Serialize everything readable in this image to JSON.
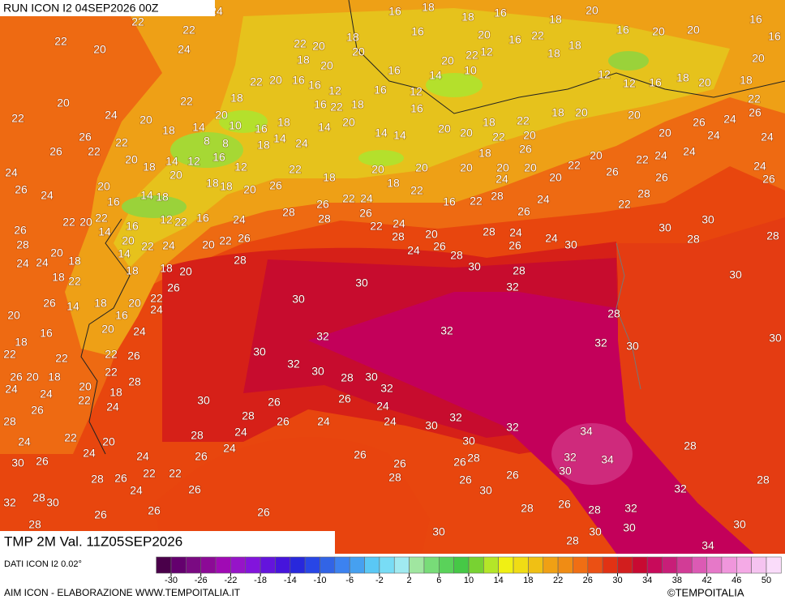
{
  "header": {
    "title": "RUN ICON I2 04SEP2026 00Z"
  },
  "footer": {
    "validity": "TMP 2M Val. 11Z05SEP2026",
    "source": "DATI ICON I2 0.02°",
    "credit": "AIM ICON - ELABORAZIONE WWW.TEMPOITALIA.IT",
    "brand": "©TEMPOITALIA"
  },
  "colorbar": {
    "ticks": [
      -30,
      -26,
      -22,
      -18,
      -14,
      -10,
      -6,
      -2,
      2,
      6,
      10,
      14,
      18,
      22,
      26,
      30,
      34,
      38,
      42,
      46,
      50
    ],
    "colors": [
      "#4a004a",
      "#64006e",
      "#7a0a82",
      "#8c0a96",
      "#a00ab4",
      "#9614c8",
      "#8214dc",
      "#6414dc",
      "#4614dc",
      "#2828dc",
      "#2846e6",
      "#3264e6",
      "#3c82f0",
      "#46a0f0",
      "#5ac8f5",
      "#78dcf5",
      "#a0eaf0",
      "#a0e6a0",
      "#78dc78",
      "#5ad25a",
      "#46c846",
      "#78d232",
      "#b4e628",
      "#f0f014",
      "#f0dc14",
      "#f0c014",
      "#f0a014",
      "#f08c14",
      "#f06e14",
      "#eb5014",
      "#e13214",
      "#d21e1e",
      "#c80a32",
      "#c80a5a",
      "#c81e78",
      "#d23c96",
      "#dc5ab4",
      "#e678c8",
      "#f096dc",
      "#f5aae6",
      "#f5c3f0",
      "#fadcfa"
    ]
  },
  "map": {
    "labels": [
      22,
      22,
      22,
      20,
      24,
      24,
      18,
      22,
      20,
      18,
      20,
      20,
      16,
      16,
      18,
      18,
      16,
      20,
      16,
      22,
      18,
      20,
      16,
      20,
      20,
      16,
      16,
      20,
      18,
      20,
      18,
      16,
      12,
      12,
      18,
      18,
      12,
      22,
      20,
      10,
      14,
      12,
      16,
      16,
      18,
      12,
      16,
      16,
      20,
      22,
      18,
      22,
      20,
      24,
      20,
      22,
      26,
      22,
      18,
      14,
      20,
      10,
      16,
      18,
      16,
      22,
      20,
      14,
      14,
      24,
      18,
      14,
      14,
      16,
      20,
      20,
      18,
      22,
      18,
      20,
      20,
      26,
      22,
      18,
      20,
      20,
      20,
      22,
      20,
      26,
      22,
      24,
      24,
      24,
      24,
      26,
      24,
      26,
      22,
      20,
      20,
      28,
      26,
      30,
      30,
      28,
      30,
      28,
      30,
      26,
      24,
      22,
      30,
      24,
      24,
      26,
      28,
      22,
      24,
      16,
      20,
      20,
      22,
      18,
      20,
      24,
      22,
      18,
      22,
      26,
      28,
      28,
      26,
      22,
      24,
      28,
      26,
      20,
      26,
      28,
      24,
      30,
      28,
      28,
      32,
      26,
      24,
      30,
      30,
      32,
      30,
      32,
      30,
      28,
      30,
      32,
      26,
      24,
      24,
      30,
      32,
      32,
      30,
      32,
      32,
      28,
      30,
      34,
      34,
      32,
      30,
      28,
      32,
      28,
      30,
      34,
      32,
      30,
      30,
      28,
      28,
      26,
      28,
      26,
      30,
      28,
      26,
      26,
      26,
      28,
      26,
      30,
      26,
      24,
      26,
      26,
      28,
      24,
      30,
      24,
      26,
      28,
      26,
      22,
      26,
      24,
      22,
      26,
      24,
      20,
      28,
      24,
      22,
      26,
      30,
      24,
      28,
      26,
      24,
      24,
      26,
      20,
      18,
      22,
      22,
      18,
      16,
      20,
      26,
      14,
      18,
      16,
      20,
      22,
      24,
      26,
      20,
      18,
      18,
      22,
      18,
      18,
      20,
      24,
      24,
      28,
      26,
      22,
      20,
      22,
      14,
      16,
      20,
      22,
      24,
      14,
      12,
      22,
      16,
      18,
      20,
      24,
      20,
      22,
      26,
      28,
      14,
      18,
      16,
      20,
      24,
      26,
      24,
      26,
      22,
      20,
      18,
      14,
      12,
      20,
      18,
      12,
      16,
      8,
      8,
      22,
      18,
      22,
      20,
      24,
      28,
      24,
      20,
      22,
      26,
      28,
      32,
      30,
      28,
      26
    ]
  }
}
